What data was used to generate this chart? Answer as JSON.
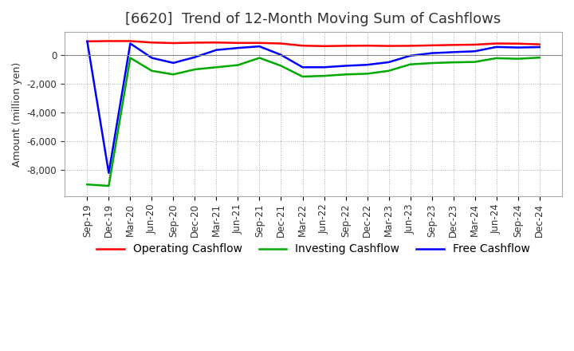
{
  "title": "[6620]  Trend of 12-Month Moving Sum of Cashflows",
  "ylabel": "Amount (million yen)",
  "background_color": "#ffffff",
  "grid_color": "#aaaaaa",
  "x_labels": [
    "Sep-19",
    "Dec-19",
    "Mar-20",
    "Jun-20",
    "Sep-20",
    "Dec-20",
    "Mar-21",
    "Jun-21",
    "Sep-21",
    "Dec-21",
    "Mar-22",
    "Jun-22",
    "Sep-22",
    "Dec-22",
    "Mar-23",
    "Jun-23",
    "Sep-23",
    "Dec-23",
    "Mar-24",
    "Jun-24",
    "Sep-24",
    "Dec-24"
  ],
  "operating": [
    950,
    970,
    970,
    870,
    830,
    860,
    870,
    840,
    840,
    800,
    650,
    620,
    640,
    650,
    630,
    640,
    670,
    700,
    720,
    800,
    790,
    740
  ],
  "investing": [
    -9000,
    -9100,
    -200,
    -1100,
    -1350,
    -1000,
    -850,
    -700,
    -200,
    -750,
    -1500,
    -1450,
    -1350,
    -1300,
    -1100,
    -650,
    -560,
    -510,
    -480,
    -220,
    -260,
    -180
  ],
  "free": [
    950,
    -8200,
    800,
    -200,
    -550,
    -150,
    350,
    490,
    600,
    10,
    -850,
    -850,
    -750,
    -680,
    -500,
    -50,
    130,
    200,
    260,
    560,
    520,
    550
  ],
  "operating_color": "#ff0000",
  "investing_color": "#00aa00",
  "free_color": "#0000ff",
  "ylim_min": -9800,
  "ylim_max": 1600,
  "yticks": [
    -8000,
    -6000,
    -4000,
    -2000,
    0
  ],
  "line_width": 1.8,
  "title_fontsize": 13,
  "legend_fontsize": 10,
  "tick_fontsize": 8.5
}
